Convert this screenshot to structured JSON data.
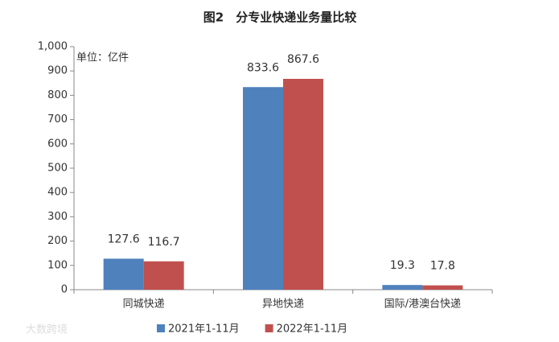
{
  "chart_data": {
    "type": "bar",
    "title": "图2　分专业快递业务量比较",
    "annotation": "单位：亿件",
    "watermark": "大数跨境",
    "categories": [
      "同城快递",
      "异地快递",
      "国际/港澳台快递"
    ],
    "series": [
      {
        "name": "2021年1-11月",
        "color": "#4f81bd",
        "values": [
          127.6,
          833.6,
          19.3
        ]
      },
      {
        "name": "2022年1-11月",
        "color": "#c0504d",
        "values": [
          116.7,
          867.6,
          17.8
        ]
      }
    ],
    "ylim": [
      0,
      1000
    ],
    "yticks": [
      0,
      100,
      200,
      300,
      400,
      500,
      600,
      700,
      800,
      900,
      {
        "value": 1000,
        "label": "1,000"
      }
    ],
    "grid": false,
    "legend": "bottom"
  }
}
